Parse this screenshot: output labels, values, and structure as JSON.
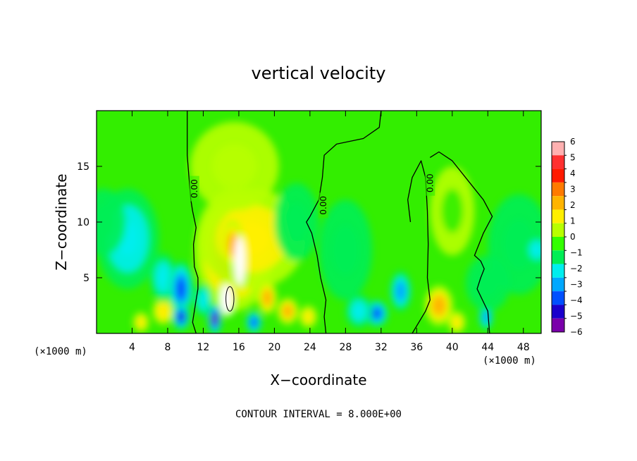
{
  "chart_data": {
    "type": "heatmap",
    "title": "vertical velocity",
    "xlabel": "X−coordinate",
    "ylabel": "Z−coordinate",
    "x_unit_left": "(×1000 m)",
    "x_unit_right": "(×1000 m)",
    "footer": "CONTOUR INTERVAL = 8.000E+00",
    "xlim": [
      0,
      50
    ],
    "ylim": [
      0,
      20
    ],
    "x_ticks": [
      4,
      8,
      12,
      16,
      20,
      24,
      28,
      32,
      36,
      40,
      44,
      48
    ],
    "y_ticks": [
      5,
      10,
      15
    ],
    "colorbar_labels": [
      "6",
      "5",
      "4",
      "3",
      "2",
      "1",
      "0",
      "−1",
      "−2",
      "−3",
      "−4",
      "−5",
      "−6"
    ],
    "colorbar_colors": [
      "#ffb0b0",
      "#ff3030",
      "#ff1a00",
      "#ff7a00",
      "#ffb400",
      "#ffef00",
      "#b8ff00",
      "#33ff00",
      "#00ee55",
      "#00eeee",
      "#00a8ff",
      "#0050ff",
      "#1a00cc",
      "#7a00aa"
    ],
    "contour_labels": [
      "0.00",
      "0.00",
      "0.00"
    ],
    "contour_label_x": [
      11,
      25.5,
      37.5
    ],
    "contour_label_y": [
      13,
      11.5,
      13.5
    ],
    "zero_contours": [
      {
        "x": [
          10.2,
          10.2,
          10.4,
          10.6,
          10.8,
          11.2,
          10.9,
          11.0,
          11.4,
          11.4,
          11.2,
          11.0,
          10.8,
          11.0,
          11.2
        ],
        "y": [
          20,
          16,
          14,
          12,
          11,
          9.5,
          8,
          6,
          5,
          4,
          3,
          2,
          1,
          0.5,
          0
        ]
      },
      {
        "x": [
          32.0,
          31.8,
          30.0,
          27.0,
          25.6,
          25.4,
          25.0,
          24.0,
          23.6,
          24.2,
          24.8,
          25.2,
          25.8,
          25.6,
          25.8
        ],
        "y": [
          20,
          18.5,
          17.5,
          17,
          16,
          14,
          12,
          10.5,
          10,
          9,
          7,
          5,
          3,
          1.5,
          0
        ]
      },
      {
        "x": [
          35.5,
          37.0,
          37.5,
          37.2,
          37.3,
          37.2,
          37.0,
          36.5,
          35.5,
          35.0,
          35.3
        ],
        "y": [
          0,
          2,
          3,
          5,
          8,
          11,
          14,
          15.5,
          14,
          12,
          10
        ]
      },
      {
        "x": [
          37.5,
          38.5,
          40.0,
          42.0,
          43.5,
          44.5,
          43.5,
          43.0,
          42.5,
          43.2,
          43.6,
          43.2,
          42.8,
          43.4,
          44.0,
          44.2
        ],
        "y": [
          15.8,
          16.3,
          15.5,
          13.5,
          12,
          10.5,
          9,
          8,
          7,
          6.5,
          5.8,
          5,
          4,
          3,
          2,
          0
        ]
      }
    ],
    "blobs": [
      {
        "x": 15.5,
        "y": 7.5,
        "rx": 4.5,
        "ry": 5.5,
        "v": 3.6
      },
      {
        "x": 17.5,
        "y": 8.5,
        "rx": 6,
        "ry": 4.5,
        "v": 2.4
      },
      {
        "x": 15.3,
        "y": 8.0,
        "rx": 1.2,
        "ry": 2.2,
        "v": 3.0
      },
      {
        "x": 14.8,
        "y": 3.3,
        "rx": 1.1,
        "ry": 1.8,
        "v": 2.8
      },
      {
        "x": 19.2,
        "y": 3.2,
        "rx": 1.1,
        "ry": 1.5,
        "v": 3.0
      },
      {
        "x": 15.5,
        "y": 15,
        "rx": 5,
        "ry": 4,
        "v": 0.9
      },
      {
        "x": 21.5,
        "y": 2.0,
        "rx": 1.2,
        "ry": 1.2,
        "v": 3.0
      },
      {
        "x": 23.8,
        "y": 1.5,
        "rx": 1.0,
        "ry": 1.0,
        "v": 2.3
      },
      {
        "x": 7.5,
        "y": 2.0,
        "rx": 1.2,
        "ry": 1.2,
        "v": 2.5
      },
      {
        "x": 5.0,
        "y": 1.0,
        "rx": 0.9,
        "ry": 0.9,
        "v": 1.8
      },
      {
        "x": 38.5,
        "y": 2.5,
        "rx": 1.6,
        "ry": 1.8,
        "v": 3.4
      },
      {
        "x": 40.5,
        "y": 1.0,
        "rx": 1.0,
        "ry": 1.0,
        "v": 1.6
      },
      {
        "x": 3.5,
        "y": 8.5,
        "rx": 3.5,
        "ry": 4.5,
        "v": -2.0
      },
      {
        "x": 0.8,
        "y": 10,
        "rx": 2.5,
        "ry": 3,
        "v": -1.2
      },
      {
        "x": 7.5,
        "y": 5.0,
        "rx": 1.5,
        "ry": 2.2,
        "v": -2.2
      },
      {
        "x": 9.5,
        "y": 4.0,
        "rx": 1.4,
        "ry": 2.5,
        "v": -3.6
      },
      {
        "x": 9.5,
        "y": 1.5,
        "rx": 1.0,
        "ry": 1.2,
        "v": -5.2
      },
      {
        "x": 13.3,
        "y": 1.3,
        "rx": 0.8,
        "ry": 1.4,
        "v": -5.5
      },
      {
        "x": 17.7,
        "y": 1.0,
        "rx": 0.9,
        "ry": 1.0,
        "v": -4.0
      },
      {
        "x": 12.0,
        "y": 3.0,
        "rx": 1.0,
        "ry": 1.5,
        "v": -1.5
      },
      {
        "x": 22.5,
        "y": 10.0,
        "rx": 2.5,
        "ry": 3.5,
        "v": -1.0
      },
      {
        "x": 31.5,
        "y": 1.8,
        "rx": 1.3,
        "ry": 1.2,
        "v": -4.0
      },
      {
        "x": 34.2,
        "y": 3.8,
        "rx": 1.2,
        "ry": 1.8,
        "v": -3.4
      },
      {
        "x": 29.5,
        "y": 2.0,
        "rx": 1.5,
        "ry": 1.5,
        "v": -2.2
      },
      {
        "x": 28.0,
        "y": 7.5,
        "rx": 3,
        "ry": 4.5,
        "v": -1.1
      },
      {
        "x": 43.8,
        "y": 1.5,
        "rx": 0.8,
        "ry": 1.2,
        "v": -3.2
      },
      {
        "x": 47.5,
        "y": 8.0,
        "rx": 3.5,
        "ry": 4.5,
        "v": -1.0
      },
      {
        "x": 49.5,
        "y": 7.5,
        "rx": 1.3,
        "ry": 1.3,
        "v": -1.6
      },
      {
        "x": 44.0,
        "y": 4.5,
        "rx": 2.5,
        "ry": 2.5,
        "v": -0.8
      },
      {
        "x": 40.0,
        "y": 11.0,
        "rx": 2.5,
        "ry": 4,
        "v": 0.5
      }
    ],
    "highlights": [
      {
        "x": 16.1,
        "y": 6.5,
        "rx": 0.6,
        "ry": 2.2
      },
      {
        "x": 14.6,
        "y": 3.0,
        "rx": 0.7,
        "ry": 1.4
      }
    ]
  }
}
